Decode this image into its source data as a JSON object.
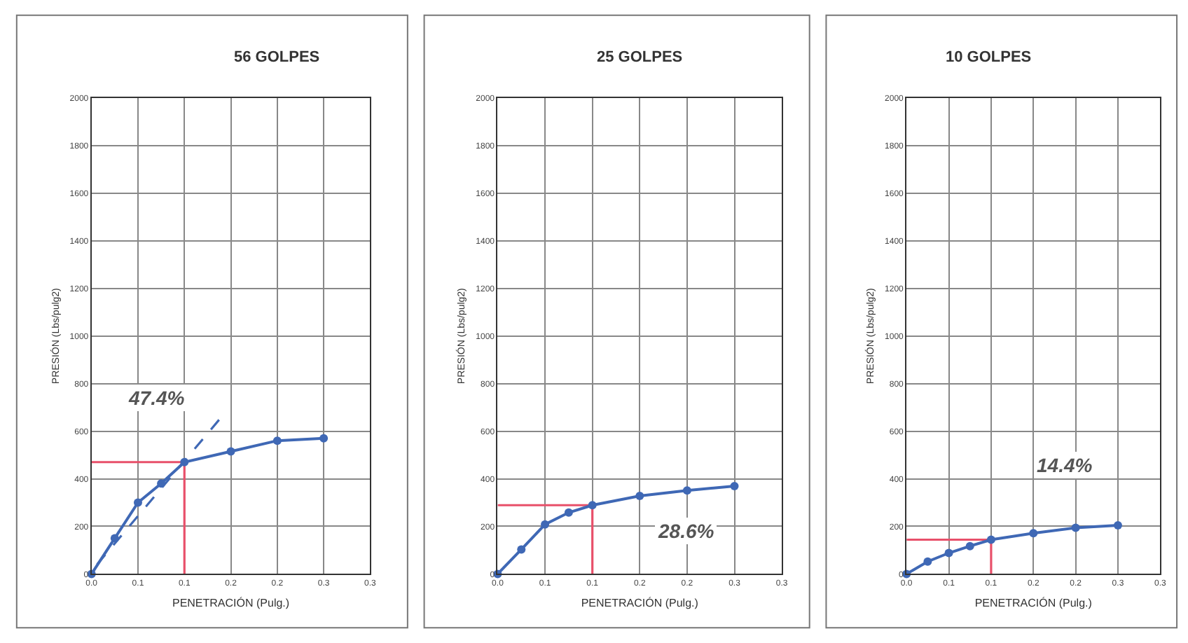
{
  "chart_data": [
    {
      "type": "line",
      "title": "56 GOLPES",
      "xlabel": "PENETRACIÓN (Pulg.)",
      "ylabel": "PRESIÓN (Lbs/pulg2)",
      "x": [
        0,
        0.025,
        0.05,
        0.075,
        0.1,
        0.15,
        0.2,
        0.25
      ],
      "series": [
        {
          "color": "#3f68b5",
          "values": [
            0,
            150,
            300,
            380,
            470,
            515,
            560,
            570
          ],
          "marker": "circle",
          "line_style": "solid"
        },
        {
          "type": "line",
          "x": [
            0.006,
            0.14
          ],
          "color": "#3f68b5",
          "values": [
            40,
            660
          ],
          "marker": "none",
          "line_style": "dashed"
        },
        {
          "type": "line",
          "x": [
            0,
            0.1,
            0.1
          ],
          "color": "#e8506a",
          "values": [
            470,
            470,
            0
          ],
          "marker": "none",
          "line_style": "solid"
        }
      ],
      "annotations": [
        "47.4%"
      ],
      "xlim": [
        0,
        0.3
      ],
      "ylim": [
        0,
        2000
      ],
      "xticks": [
        {
          "value": 0,
          "label": "0.0"
        },
        {
          "value": 0.05,
          "label": "0.1"
        },
        {
          "value": 0.1,
          "label": "0.1"
        },
        {
          "value": 0.15,
          "label": "0.2"
        },
        {
          "value": 0.2,
          "label": "0.2"
        },
        {
          "value": 0.25,
          "label": "0.3"
        },
        {
          "value": 0.3,
          "label": "0.3"
        }
      ],
      "yticks": [
        0,
        200,
        400,
        600,
        800,
        1000,
        1200,
        1400,
        1600,
        1800,
        2000
      ],
      "grid": true
    },
    {
      "type": "line",
      "title": "25 GOLPES",
      "xlabel": "PENETRACIÓN (Pulg.)",
      "ylabel": "PRESIÓN (Lbs/pulg2)",
      "x": [
        0,
        0.025,
        0.05,
        0.075,
        0.1,
        0.15,
        0.2,
        0.25
      ],
      "series": [
        {
          "color": "#3f68b5",
          "values": [
            0,
            103,
            208,
            258,
            289,
            328,
            351,
            369
          ],
          "marker": "circle",
          "line_style": "solid"
        },
        {
          "type": "line",
          "x": [
            0,
            0.1,
            0.1
          ],
          "color": "#e8506a",
          "values": [
            289,
            289,
            0
          ],
          "marker": "none",
          "line_style": "solid"
        }
      ],
      "annotations": [
        "28.6%"
      ],
      "xlim": [
        0,
        0.3
      ],
      "ylim": [
        0,
        2000
      ],
      "xticks": [
        {
          "value": 0,
          "label": "0.0"
        },
        {
          "value": 0.05,
          "label": "0.1"
        },
        {
          "value": 0.1,
          "label": "0.1"
        },
        {
          "value": 0.15,
          "label": "0.2"
        },
        {
          "value": 0.2,
          "label": "0.2"
        },
        {
          "value": 0.25,
          "label": "0.3"
        },
        {
          "value": 0.3,
          "label": "0.3"
        }
      ],
      "yticks": [
        0,
        200,
        400,
        600,
        800,
        1000,
        1200,
        1400,
        1600,
        1800,
        2000
      ],
      "grid": true
    },
    {
      "type": "line",
      "title": "10 GOLPES",
      "xlabel": "PENETRACIÓN (Pulg.)",
      "ylabel": "PRESIÓN (Lbs/pulg2)",
      "x": [
        0,
        0.025,
        0.05,
        0.075,
        0.1,
        0.15,
        0.2,
        0.25
      ],
      "series": [
        {
          "color": "#3f68b5",
          "values": [
            0,
            52,
            88,
            117,
            144,
            171,
            194,
            204
          ],
          "marker": "circle",
          "line_style": "solid"
        },
        {
          "type": "line",
          "x": [
            0,
            0.1,
            0.1
          ],
          "color": "#e8506a",
          "values": [
            144,
            144,
            0
          ],
          "marker": "none",
          "line_style": "solid"
        }
      ],
      "annotations": [
        "14.4%"
      ],
      "xlim": [
        0,
        0.3
      ],
      "ylim": [
        0,
        2000
      ],
      "xticks": [
        {
          "value": 0,
          "label": "0.0"
        },
        {
          "value": 0.05,
          "label": "0.1"
        },
        {
          "value": 0.1,
          "label": "0.1"
        },
        {
          "value": 0.15,
          "label": "0.2"
        },
        {
          "value": 0.2,
          "label": "0.2"
        },
        {
          "value": 0.25,
          "label": "0.3"
        },
        {
          "value": 0.3,
          "label": "0.3"
        }
      ],
      "yticks": [
        0,
        200,
        400,
        600,
        800,
        1000,
        1200,
        1400,
        1600,
        1800,
        2000
      ],
      "grid": true
    }
  ]
}
